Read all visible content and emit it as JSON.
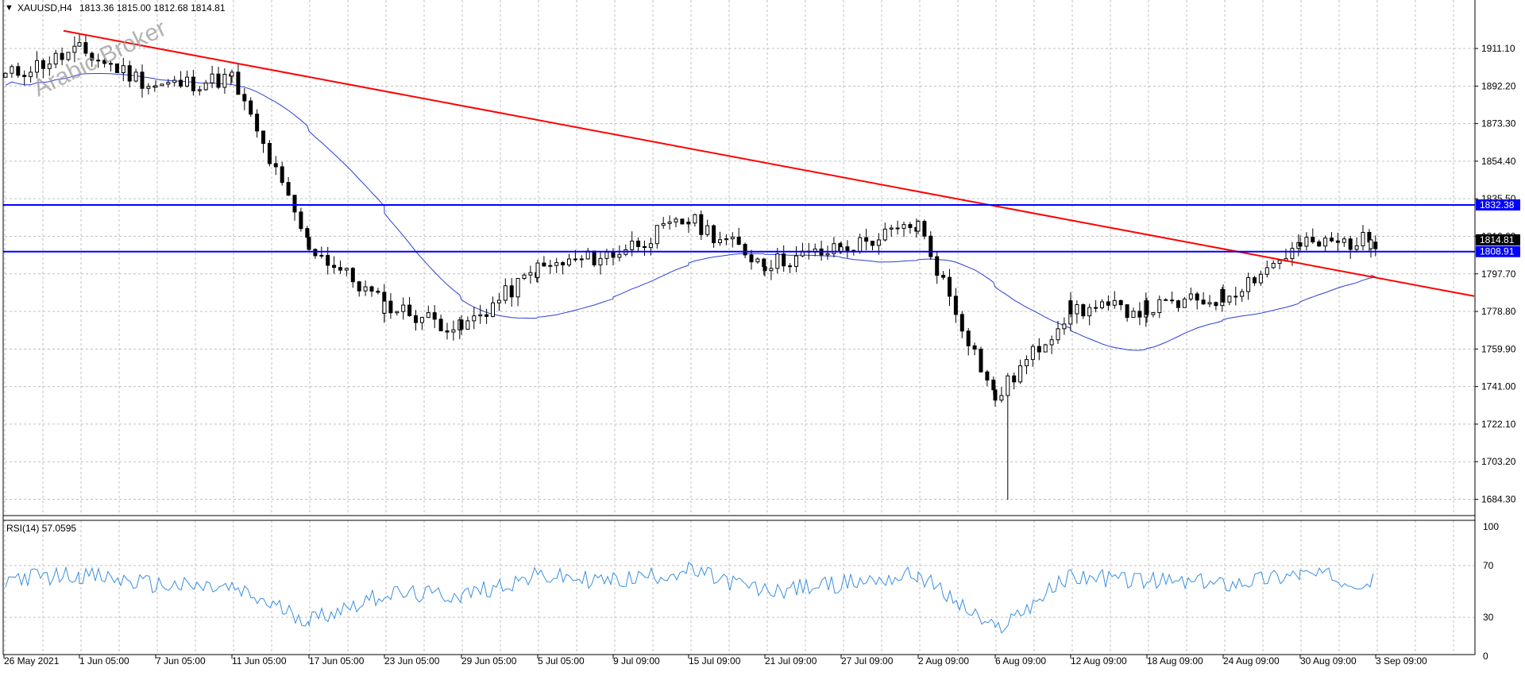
{
  "header": {
    "menu_glyph": "▼",
    "symbol": "XAUUSD,H4",
    "ohlc": "1813.36 1815.00 1812.68 1814.81"
  },
  "watermark": "Arabic Broker",
  "rsi_label": "RSI(14) 57.0595",
  "colors": {
    "background": "#ffffff",
    "grid": "#c0c0c0",
    "candle": "#000000",
    "trendline": "#ff0000",
    "levels": "#0000ff",
    "moving_average": "#2b3fd6",
    "rsi": "#3a8fe0",
    "watermark": "#9a9a9a"
  },
  "chart_data": [
    {
      "type": "candlestick",
      "symbol": "XAUUSD",
      "timeframe": "H4",
      "price_ticks": [
        1911.1,
        1892.2,
        1873.3,
        1854.4,
        1835.5,
        1816.6,
        1797.7,
        1778.8,
        1759.9,
        1741.0,
        1722.1,
        1703.2,
        1684.3
      ],
      "price_tick_labels": [
        "1911.10",
        "1892.20",
        "1873.30",
        "1854.40",
        "1835.50",
        "1816.60",
        "1797.70",
        "1778.80",
        "1759.90",
        "1741.00",
        "1722.10",
        "1703.20",
        "1684.30"
      ],
      "ylim": [
        1676.5,
        1927.5
      ],
      "x_labels": [
        "26 May 2021",
        "1 Jun 05:00",
        "7 Jun 05:00",
        "11 Jun 05:00",
        "17 Jun 05:00",
        "23 Jun 05:00",
        "29 Jun 05:00",
        "5 Jul 05:00",
        "9 Jul 09:00",
        "15 Jul 09:00",
        "21 Jul 09:00",
        "27 Jul 09:00",
        "2 Aug 09:00",
        "6 Aug 09:00",
        "12 Aug 09:00",
        "18 Aug 09:00",
        "24 Aug 09:00",
        "30 Aug 09:00",
        "3 Sep 09:00"
      ],
      "horizontal_levels": [
        {
          "label": "1832.38",
          "value": 1832.38
        },
        {
          "label": "1808.91",
          "value": 1808.91
        }
      ],
      "current_price": {
        "label": "1814.81",
        "value": 1814.81
      },
      "trendline": {
        "start": {
          "x": "26 May 2021",
          "price": 1920.0
        },
        "end": {
          "x": "3 Sep 09:00",
          "price": 1794.5
        }
      },
      "close_path": [
        [
          "26 May 2021",
          1897
        ],
        [
          "1 Jun 05:00",
          1910
        ],
        [
          "7 Jun 05:00",
          1892
        ],
        [
          "11 Jun 05:00",
          1896
        ],
        [
          "17 Jun 05:00",
          1812
        ],
        [
          "23 Jun 05:00",
          1782
        ],
        [
          "29 Jun 05:00",
          1770
        ],
        [
          "5 Jul 05:00",
          1800
        ],
        [
          "9 Jul 09:00",
          1808
        ],
        [
          "15 Jul 09:00",
          1825
        ],
        [
          "21 Jul 09:00",
          1803
        ],
        [
          "27 Jul 09:00",
          1810
        ],
        [
          "2 Aug 09:00",
          1822
        ],
        [
          "6 Aug 09:00",
          1735
        ],
        [
          "12 Aug 09:00",
          1780
        ],
        [
          "18 Aug 09:00",
          1780
        ],
        [
          "24 Aug 09:00",
          1786
        ],
        [
          "30 Aug 09:00",
          1812
        ],
        [
          "3 Sep 09:00",
          1814.81
        ]
      ],
      "price_extremes": {
        "high": 1916,
        "low": 1684
      }
    },
    {
      "type": "line",
      "name": "RSI(14)",
      "last_value": 57.0595,
      "y_ticks": [
        100,
        70,
        30,
        0
      ],
      "y_tick_labels": [
        "100",
        "70",
        "30",
        "0"
      ],
      "ylim": [
        0,
        100
      ],
      "path": [
        [
          "26 May 2021",
          60
        ],
        [
          "1 Jun 05:00",
          63
        ],
        [
          "7 Jun 05:00",
          55
        ],
        [
          "11 Jun 05:00",
          52
        ],
        [
          "17 Jun 05:00",
          28
        ],
        [
          "23 Jun 05:00",
          48
        ],
        [
          "29 Jun 05:00",
          47
        ],
        [
          "5 Jul 05:00",
          62
        ],
        [
          "9 Jul 09:00",
          58
        ],
        [
          "15 Jul 09:00",
          66
        ],
        [
          "21 Jul 09:00",
          50
        ],
        [
          "27 Jul 09:00",
          56
        ],
        [
          "2 Aug 09:00",
          63
        ],
        [
          "6 Aug 09:00",
          20
        ],
        [
          "12 Aug 09:00",
          62
        ],
        [
          "18 Aug 09:00",
          58
        ],
        [
          "24 Aug 09:00",
          56
        ],
        [
          "30 Aug 09:00",
          64
        ],
        [
          "3 Sep 09:00",
          57
        ]
      ]
    }
  ]
}
